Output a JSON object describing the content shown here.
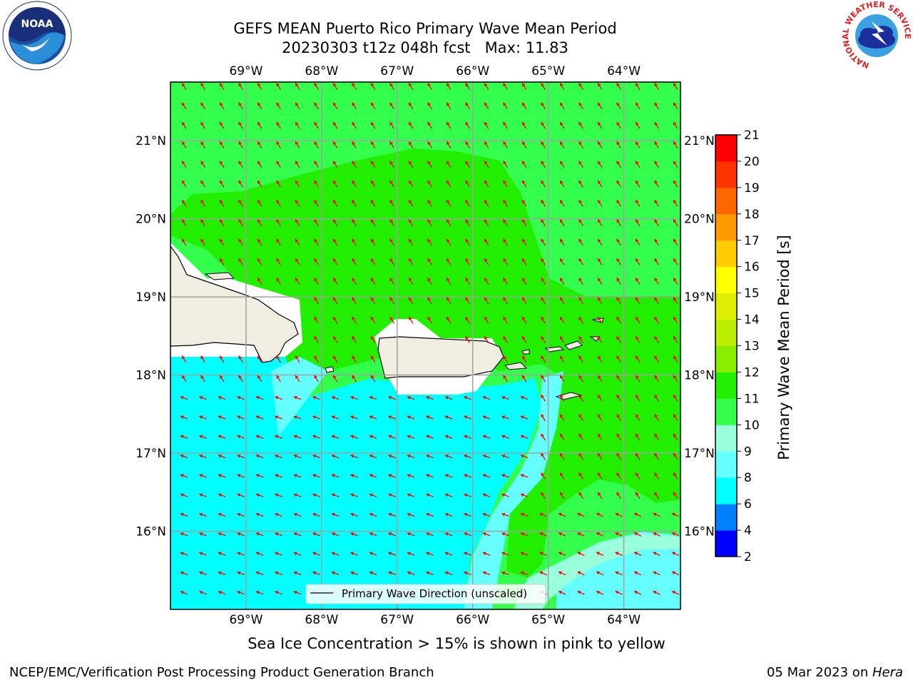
{
  "title_line1": "GEFS MEAN Puerto Rico Primary Wave Mean Period",
  "title_line2": "20230303 t12z 048h fcst   Max: 11.83",
  "map": {
    "lon_labels": [
      "69°W",
      "68°W",
      "67°W",
      "66°W",
      "65°W",
      "64°W"
    ],
    "lon_values": [
      -69,
      -68,
      -67,
      -66,
      -65,
      -64
    ],
    "lat_labels": [
      "21°N",
      "20°N",
      "19°N",
      "18°N",
      "17°N",
      "16°N"
    ],
    "lat_values": [
      21,
      20,
      19,
      18,
      17,
      16
    ],
    "lon_range": [
      -70.0,
      -63.25
    ],
    "lat_range": [
      15.0,
      21.75
    ],
    "grid": true,
    "arrow_color": "#ff0000",
    "land_color": "#f0eee0",
    "regions": [
      {
        "period_range": "10-11",
        "color": "#33ff4d"
      },
      {
        "period_range": "11-12",
        "color": "#22ee00"
      },
      {
        "period_range": "8-9",
        "color": "#66ffff"
      },
      {
        "period_range": "9-10",
        "color": "#99ffdd"
      },
      {
        "period_range": "6-8",
        "color": "#00ffff"
      }
    ],
    "legend_label": "Primary Wave Direction (unscaled)"
  },
  "colorbar": {
    "label": "Primary Wave Mean Period [s]",
    "ticks": [
      "2",
      "4",
      "6",
      "8",
      "9",
      "10",
      "11",
      "12",
      "13",
      "14",
      "15",
      "16",
      "17",
      "18",
      "19",
      "20",
      "21"
    ],
    "colors": [
      "#0000ff",
      "#0080ff",
      "#00ffff",
      "#66ffff",
      "#99ffdd",
      "#33ff4d",
      "#22ee00",
      "#88ee00",
      "#bbee00",
      "#ddee00",
      "#ffff00",
      "#ffcc00",
      "#ff9900",
      "#ff6600",
      "#ff3300",
      "#ff0000"
    ]
  },
  "subtitle": "Sea Ice Concentration > 15% is shown in pink to yellow",
  "footer": {
    "left": "NCEP/EMC/Verification Post Processing Product Generation Branch",
    "date": "05 Mar 2023 on ",
    "machine": "Hera"
  },
  "logos": {
    "noaa": "NOAA",
    "nws_ring": "NATIONAL WEATHER SERVICE"
  }
}
